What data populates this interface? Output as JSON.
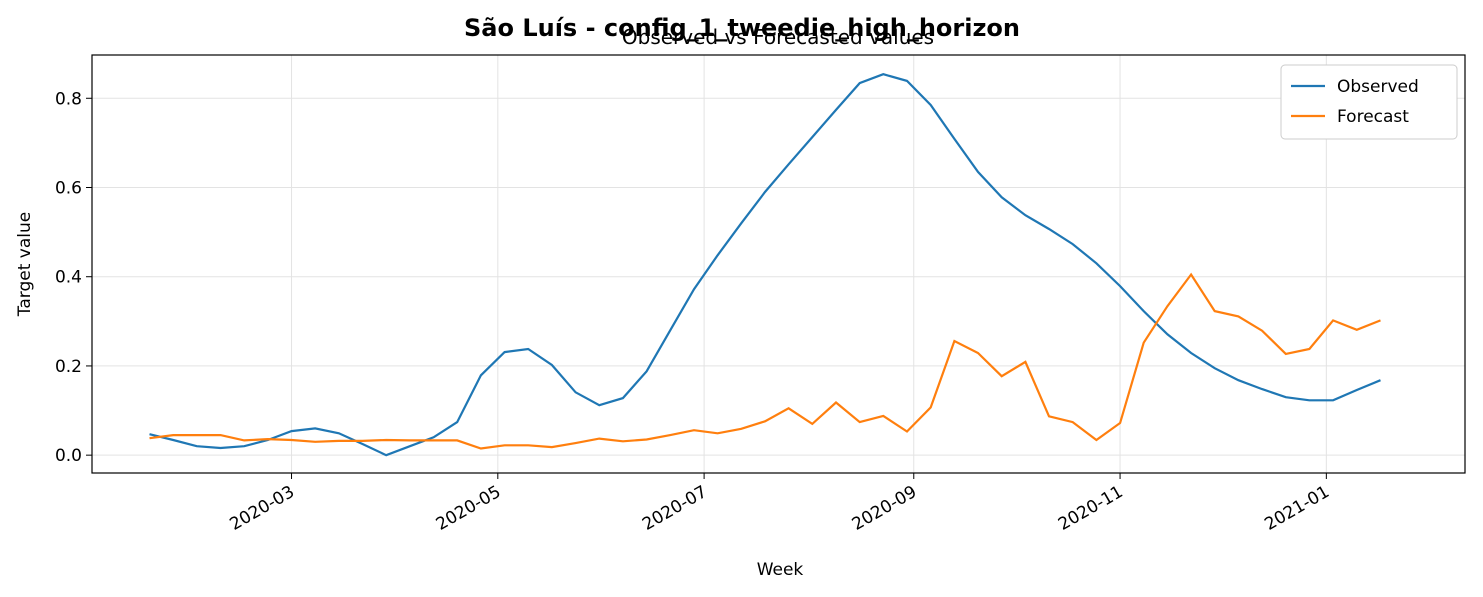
{
  "chart_data": {
    "type": "line",
    "title": "São Luís - config_1_tweedie_high_horizon",
    "subtitle": "Observed vs Forecasted values",
    "x_label": "Week",
    "y_label": "Target value",
    "x": [
      "2020-01-19",
      "2020-01-26",
      "2020-02-02",
      "2020-02-09",
      "2020-02-16",
      "2020-02-23",
      "2020-03-01",
      "2020-03-08",
      "2020-03-15",
      "2020-03-22",
      "2020-03-29",
      "2020-04-05",
      "2020-04-12",
      "2020-04-19",
      "2020-04-26",
      "2020-05-03",
      "2020-05-10",
      "2020-05-17",
      "2020-05-24",
      "2020-05-31",
      "2020-06-07",
      "2020-06-14",
      "2020-06-21",
      "2020-06-28",
      "2020-07-05",
      "2020-07-12",
      "2020-07-19",
      "2020-07-26",
      "2020-08-02",
      "2020-08-09",
      "2020-08-16",
      "2020-08-23",
      "2020-08-30",
      "2020-09-06",
      "2020-09-13",
      "2020-09-20",
      "2020-09-27",
      "2020-10-04",
      "2020-10-11",
      "2020-10-18",
      "2020-10-25",
      "2020-11-01",
      "2020-11-08",
      "2020-11-15",
      "2020-11-22",
      "2020-11-29",
      "2020-12-06",
      "2020-12-13",
      "2020-12-20",
      "2020-12-27",
      "2021-01-03",
      "2021-01-10",
      "2021-01-17"
    ],
    "series": [
      {
        "name": "Observed",
        "color": "#1f77b4",
        "values": [
          0.047,
          0.034,
          0.02,
          0.016,
          0.02,
          0.034,
          0.054,
          0.06,
          0.049,
          0.025,
          0.0,
          0.02,
          0.04,
          0.074,
          0.179,
          0.231,
          0.238,
          0.202,
          0.141,
          0.112,
          0.128,
          0.188,
          0.28,
          0.372,
          0.448,
          0.52,
          0.59,
          0.652,
          0.713,
          0.774,
          0.834,
          0.854,
          0.839,
          0.785,
          0.709,
          0.635,
          0.578,
          0.538,
          0.507,
          0.473,
          0.43,
          0.379,
          0.323,
          0.271,
          0.229,
          0.195,
          0.168,
          0.148,
          0.13,
          0.123,
          0.123,
          0.146,
          0.168
        ]
      },
      {
        "name": "Forecast",
        "color": "#ff7f0e",
        "values": [
          0.038,
          0.045,
          0.045,
          0.045,
          0.033,
          0.036,
          0.034,
          0.03,
          0.032,
          0.032,
          0.034,
          0.033,
          0.033,
          0.033,
          0.015,
          0.022,
          0.022,
          0.018,
          0.027,
          0.037,
          0.031,
          0.035,
          0.045,
          0.056,
          0.049,
          0.059,
          0.076,
          0.105,
          0.07,
          0.118,
          0.074,
          0.088,
          0.053,
          0.107,
          0.256,
          0.229,
          0.177,
          0.209,
          0.087,
          0.074,
          0.034,
          0.072,
          0.252,
          0.334,
          0.405,
          0.323,
          0.311,
          0.279,
          0.227,
          0.238,
          0.302,
          0.281,
          0.302
        ]
      }
    ],
    "xlim": [
      "2020-01-02",
      "2021-02-11"
    ],
    "xticks": [
      "2020-03",
      "2020-05",
      "2020-07",
      "2020-09",
      "2020-11",
      "2021-01"
    ],
    "ylim": [
      -0.04,
      0.897
    ],
    "yticks": [
      {
        "value": 0,
        "label": "0.0"
      },
      0.2,
      0.4,
      0.6,
      0.8
    ],
    "grid": true,
    "legend": "upper right"
  }
}
